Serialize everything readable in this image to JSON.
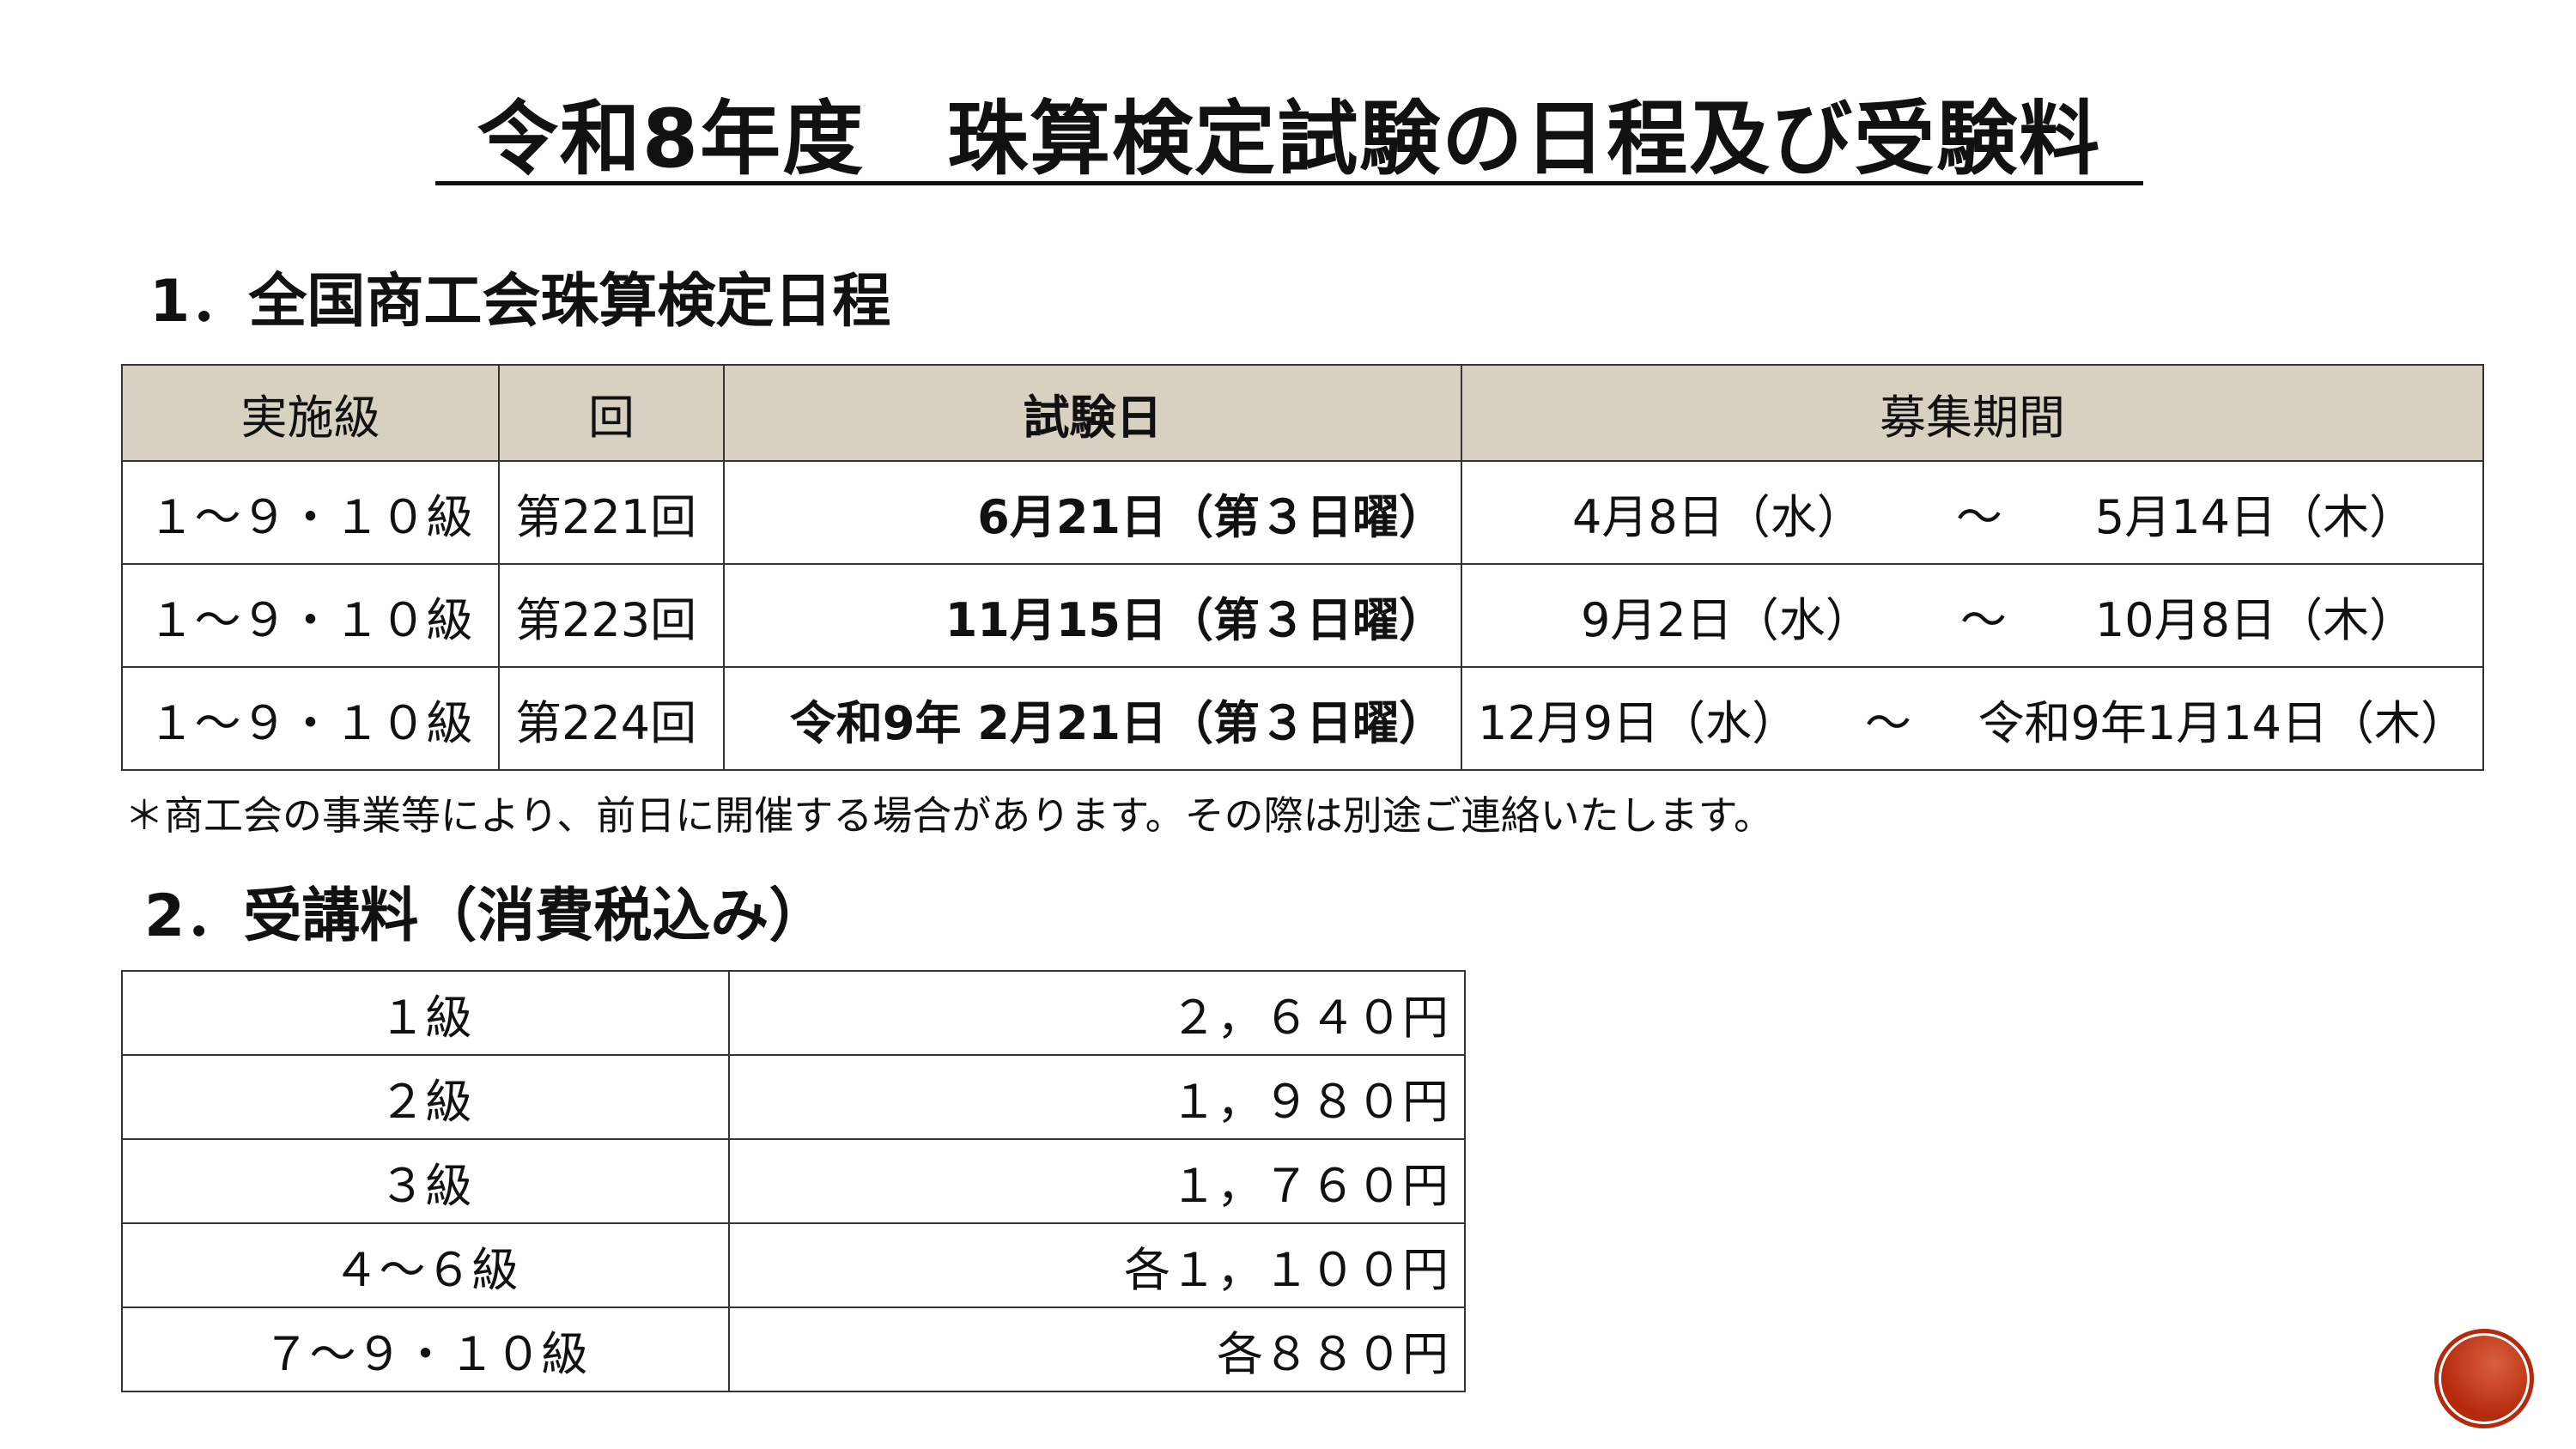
{
  "title": "令和8年度　珠算検定試験の日程及び受験料",
  "section1": {
    "heading": "1．全国商工会珠算検定日程",
    "headers": [
      "実施級",
      "回",
      "試験日",
      "募集期間"
    ],
    "rows": [
      {
        "grade": "１～９・１０級",
        "round": "第221回",
        "date": "6月21日（第３日曜）",
        "period_start": "4月8日（水）",
        "tilde": "～",
        "period_end": "5月14日（木）"
      },
      {
        "grade": "１～９・１０級",
        "round": "第223回",
        "date": "11月15日（第３日曜）",
        "period_start": "9月2日（水）",
        "tilde": "～",
        "period_end": "10月8日（木）"
      },
      {
        "grade": "１～９・１０級",
        "round": "第224回",
        "date": "令和9年 2月21日（第３日曜）",
        "period_start": "12月9日（水）",
        "tilde": "～",
        "period_end": "令和9年1月14日（木）"
      }
    ],
    "note": "＊商工会の事業等により、前日に開催する場合があります。その際は別途ご連絡いたします。"
  },
  "section2": {
    "heading": "2．受講料（消費税込み）",
    "rows": [
      {
        "grade": "１級",
        "fee": "２，６４０円"
      },
      {
        "grade": "２級",
        "fee": "１，９８０円"
      },
      {
        "grade": "３級",
        "fee": "１，７６０円"
      },
      {
        "grade": "４～６級",
        "fee": "各１，１００円"
      },
      {
        "grade": "７～９・１０級",
        "fee": "各８８０円"
      }
    ]
  },
  "colors": {
    "header_bg": "#d8d0c1",
    "badge": "#b52a0c"
  }
}
